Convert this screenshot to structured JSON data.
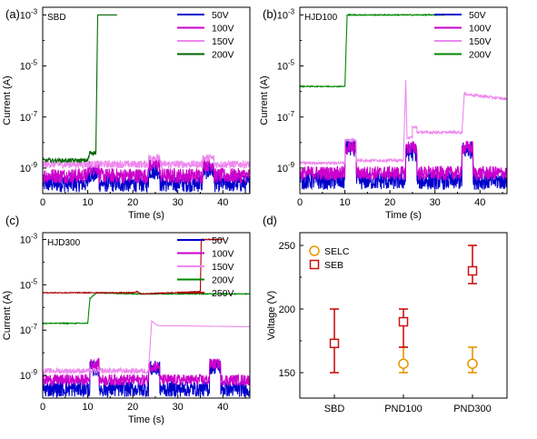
{
  "chart_data": [
    {
      "panel": "(a)",
      "type": "line",
      "inner_label": "SBD",
      "xlabel": "Time (s)",
      "ylabel": "Current (A)",
      "xlim": [
        0,
        46
      ],
      "ylim_log10": [
        -10,
        -2.7
      ],
      "y_scale": "log",
      "xticks": [
        0,
        10,
        20,
        30,
        40
      ],
      "yticks": [
        {
          "exp": -3,
          "label": "10"
        },
        {
          "exp": -5,
          "label": "10"
        },
        {
          "exp": -7,
          "label": "10"
        },
        {
          "exp": -9,
          "label": "10"
        }
      ],
      "ytick_exponents": [
        "-3",
        "-5",
        "-7",
        "-9"
      ],
      "legend_position": "top-right",
      "series": [
        {
          "name": "50V",
          "color": "#0000cc",
          "style": "noise",
          "x": [
            0,
            46
          ],
          "center_log": -9.6,
          "amp": 0.35,
          "bumps": [
            [
              10,
              12.5,
              0.35
            ],
            [
              23.5,
              26,
              0.5
            ],
            [
              35.5,
              38,
              0.5
            ]
          ]
        },
        {
          "name": "100V",
          "color": "#cc00cc",
          "style": "noise",
          "x": [
            0,
            46
          ],
          "center_log": -9.3,
          "amp": 0.3,
          "bumps": [
            [
              10,
              12.5,
              0.3
            ],
            [
              23.5,
              26,
              0.45
            ],
            [
              35.5,
              38,
              0.45
            ]
          ]
        },
        {
          "name": "150V",
          "color": "#ee88ee",
          "style": "noise",
          "x": [
            0,
            46
          ],
          "center_log": -8.85,
          "amp": 0.15,
          "bumps": [
            [
              23.5,
              26,
              0.25
            ],
            [
              35.5,
              38,
              0.25
            ]
          ]
        },
        {
          "name": "200V",
          "color": "#006600",
          "style": "steps",
          "points": [
            [
              0,
              -8.7
            ],
            [
              10,
              -8.7
            ],
            [
              10.5,
              -8.4
            ],
            [
              11.8,
              -8.4
            ],
            [
              12.2,
              -3
            ],
            [
              16.5,
              -3
            ]
          ],
          "noise_until": 11.8,
          "noise_amp": 0.08
        }
      ]
    },
    {
      "panel": "(b)",
      "type": "line",
      "inner_label": "HJD100",
      "xlabel": "Time (s)",
      "ylabel": "Current (A)",
      "xlim": [
        0,
        46
      ],
      "ylim_log10": [
        -10,
        -2.7
      ],
      "y_scale": "log",
      "xticks": [
        0,
        10,
        20,
        30,
        40
      ],
      "yticks": [
        {
          "exp": -3,
          "label": "10"
        },
        {
          "exp": -5,
          "label": "10"
        },
        {
          "exp": -7,
          "label": "10"
        },
        {
          "exp": -9,
          "label": "10"
        }
      ],
      "ytick_exponents": [
        "-3",
        "-5",
        "-7",
        "-9"
      ],
      "legend_position": "top-right",
      "series": [
        {
          "name": "50V",
          "color": "#0000cc",
          "style": "noise",
          "x": [
            0,
            46
          ],
          "center_log": -9.5,
          "amp": 0.35,
          "bumps": [
            [
              10,
              12.5,
              1.3
            ],
            [
              23.5,
              26,
              1.1
            ],
            [
              36,
              38.5,
              1.2
            ]
          ]
        },
        {
          "name": "100V",
          "color": "#cc00cc",
          "style": "noise",
          "x": [
            0,
            46
          ],
          "center_log": -9.2,
          "amp": 0.28,
          "bumps": [
            [
              10,
              12.5,
              1.0
            ],
            [
              23.5,
              26,
              1.0
            ],
            [
              36,
              38.5,
              1.0
            ]
          ]
        },
        {
          "name": "150V",
          "color": "#ee88ee",
          "style": "steps",
          "points": [
            [
              0,
              -8.8
            ],
            [
              10,
              -8.8
            ],
            [
              10,
              -7.9
            ],
            [
              12.5,
              -7.9
            ],
            [
              12.5,
              -8.7
            ],
            [
              23,
              -8.7
            ],
            [
              23.5,
              -5.6
            ],
            [
              23.8,
              -7.8
            ],
            [
              25,
              -7.8
            ],
            [
              25,
              -7.4
            ],
            [
              26,
              -7.4
            ],
            [
              26,
              -7.6
            ],
            [
              36,
              -7.6
            ],
            [
              36.5,
              -6.1
            ],
            [
              46,
              -6.3
            ]
          ],
          "noise_until": 46,
          "noise_amp": 0.05
        },
        {
          "name": "200V",
          "color": "#008800",
          "style": "steps",
          "points": [
            [
              0,
              -5.8
            ],
            [
              10,
              -5.8
            ],
            [
              10.5,
              -3
            ],
            [
              32,
              -3
            ]
          ],
          "noise_until": 0,
          "noise_amp": 0
        }
      ]
    },
    {
      "panel": "(c)",
      "type": "line",
      "inner_label": "HJD300",
      "xlabel": "Time (s)",
      "ylabel": "Current (A)",
      "xlim": [
        0,
        46
      ],
      "ylim_log10": [
        -10,
        -2.7
      ],
      "y_scale": "log",
      "xticks": [
        0,
        10,
        20,
        30,
        40
      ],
      "yticks": [
        {
          "exp": -3,
          "label": "10"
        },
        {
          "exp": -5,
          "label": "10"
        },
        {
          "exp": -7,
          "label": "10"
        },
        {
          "exp": -9,
          "label": "10"
        }
      ],
      "ytick_exponents": [
        "-3",
        "-5",
        "-7",
        "-9"
      ],
      "legend_position": "top-right",
      "series": [
        {
          "name": "50V",
          "color": "#0000cc",
          "style": "noise",
          "x": [
            0,
            46
          ],
          "center_log": -9.6,
          "amp": 0.35,
          "bumps": [
            [
              10.5,
              12.5,
              0.9
            ],
            [
              23.5,
              26,
              0.9
            ],
            [
              37,
              39.5,
              1.0
            ]
          ]
        },
        {
          "name": "100V",
          "color": "#cc00cc",
          "style": "noise",
          "x": [
            0,
            46
          ],
          "center_log": -9.2,
          "amp": 0.25,
          "bumps": [
            [
              10.5,
              12.5,
              0.7
            ],
            [
              23.5,
              26,
              0.6
            ],
            [
              37,
              39.5,
              0.7
            ]
          ]
        },
        {
          "name": "150V",
          "color": "#ee88ee",
          "style": "steps",
          "points": [
            [
              0,
              -8.8
            ],
            [
              23.5,
              -8.8
            ],
            [
              24.2,
              -6.6
            ],
            [
              25.5,
              -6.8
            ],
            [
              46,
              -6.85
            ]
          ],
          "noise_until": 23.5,
          "noise_amp": 0.12
        },
        {
          "name": "200V",
          "color": "#008800",
          "style": "steps",
          "points": [
            [
              0,
              -6.7
            ],
            [
              10,
              -6.7
            ],
            [
              10.5,
              -5.6
            ],
            [
              12,
              -5.35
            ],
            [
              20,
              -5.4
            ],
            [
              30,
              -5.4
            ],
            [
              46,
              -5.4
            ]
          ],
          "noise_until": 0,
          "noise_amp": 0
        },
        {
          "name": "250V",
          "color": "#aa0000",
          "style": "steps",
          "points": [
            [
              0,
              -5.35
            ],
            [
              20,
              -5.35
            ],
            [
              21,
              -5.3
            ],
            [
              22,
              -5.4
            ],
            [
              35,
              -5.3
            ],
            [
              35.2,
              -3
            ],
            [
              40,
              -3
            ]
          ],
          "noise_until": 0,
          "noise_amp": 0
        }
      ]
    },
    {
      "panel": "(d)",
      "type": "scatter",
      "xlabel": "",
      "ylabel": "Voltage (V)",
      "categories": [
        "SBD",
        "PND100",
        "PND300"
      ],
      "ylim": [
        130,
        260
      ],
      "yticks": [
        150,
        200,
        250
      ],
      "legend_position": "top-left",
      "series": [
        {
          "name": "SELC",
          "color": "#e69500",
          "marker": "circle",
          "values": [
            null,
            157,
            157
          ],
          "err_low": [
            null,
            150,
            150
          ],
          "err_high": [
            null,
            170,
            170
          ]
        },
        {
          "name": "SEB",
          "color": "#cc1111",
          "marker": "square",
          "values": [
            173,
            190,
            230
          ],
          "err_low": [
            150,
            170,
            220
          ],
          "err_high": [
            200,
            200,
            250
          ]
        }
      ]
    }
  ]
}
